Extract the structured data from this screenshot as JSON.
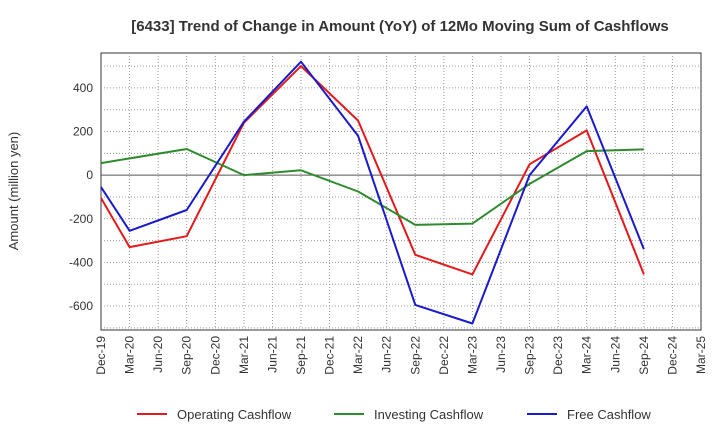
{
  "chart_data": {
    "type": "line",
    "title": "[6433]  Trend of Change in Amount (YoY) of 12Mo Moving Sum of Cashflows",
    "xlabel": "",
    "ylabel": "Amount (million yen)",
    "ylim": [
      -710,
      560
    ],
    "yticks": [
      -600,
      -400,
      -200,
      0,
      200,
      400
    ],
    "categories": [
      "Dec-19",
      "Mar-20",
      "Jun-20",
      "Sep-20",
      "Dec-20",
      "Mar-21",
      "Jun-21",
      "Sep-21",
      "Dec-21",
      "Mar-22",
      "Jun-22",
      "Sep-22",
      "Dec-22",
      "Mar-23",
      "Jun-23",
      "Sep-23",
      "Dec-23",
      "Mar-24",
      "Jun-24",
      "Sep-24",
      "Dec-24",
      "Mar-25"
    ],
    "grid": true,
    "legend_position": "bottom",
    "series": [
      {
        "name": "Operating Cashflow",
        "color": "#e31a1c",
        "values": [
          -105,
          -330,
          null,
          -280,
          null,
          240,
          null,
          500,
          null,
          250,
          null,
          -365,
          null,
          -455,
          null,
          50,
          null,
          205,
          null,
          -455,
          null,
          null
        ]
      },
      {
        "name": "Investing Cashflow",
        "color": "#2e8b2e",
        "values": [
          55,
          null,
          null,
          120,
          null,
          0,
          null,
          22,
          null,
          -75,
          null,
          -228,
          null,
          -222,
          null,
          -40,
          null,
          110,
          null,
          118,
          null,
          null
        ]
      },
      {
        "name": "Free Cashflow",
        "color": "#1a1acd",
        "values": [
          -55,
          -255,
          null,
          -160,
          null,
          245,
          null,
          520,
          null,
          180,
          null,
          -595,
          null,
          -680,
          null,
          0,
          null,
          315,
          null,
          -340,
          null,
          null
        ]
      }
    ]
  }
}
